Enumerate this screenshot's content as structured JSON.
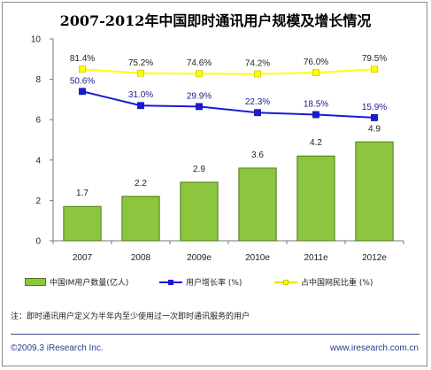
{
  "title": "2007-2012年中国即时通讯用户规模及增长情况",
  "chart_data": {
    "type": "bar",
    "categories": [
      "2007",
      "2008",
      "2009e",
      "2010e",
      "2011e",
      "2012e"
    ],
    "ylim": [
      0,
      10
    ],
    "yticks": [
      "0",
      "2",
      "4",
      "6",
      "8",
      "10"
    ],
    "grid": false,
    "series": [
      {
        "name": "中国IM用户数量(亿人)",
        "kind": "bar",
        "color": "#8cc63f",
        "values": [
          1.7,
          2.2,
          2.9,
          3.6,
          4.2,
          4.9
        ],
        "labels": [
          "1.7",
          "2.2",
          "2.9",
          "3.6",
          "4.2",
          "4.9"
        ]
      },
      {
        "name": "用户增长率 (%)",
        "kind": "line",
        "color": "#1a1ad8",
        "values": [
          7.4,
          6.7,
          6.65,
          6.35,
          6.25,
          6.1
        ],
        "labels": [
          "50.6%",
          "31.0%",
          "29.9%",
          "22.3%",
          "18.5%",
          "15.9%"
        ]
      },
      {
        "name": "占中国网民比重 (%)",
        "kind": "line",
        "color": "#ffff00",
        "values": [
          8.5,
          8.3,
          8.28,
          8.27,
          8.33,
          8.5
        ],
        "labels": [
          "81.4%",
          "75.2%",
          "74.6%",
          "74.2%",
          "76.0%",
          "79.5%"
        ]
      }
    ],
    "legend_position": "bottom"
  },
  "legend": {
    "bar": "中国IM用户数量(亿人)",
    "growth": "用户增长率 (%)",
    "share": "占中国网民比重 (%)"
  },
  "note": "注：即时通讯用户定义为半年内至少使用过一次即时通讯服务的用户",
  "footer": {
    "copyright": "©2009.3 iResearch Inc.",
    "website": "www.iresearch.com.cn"
  }
}
